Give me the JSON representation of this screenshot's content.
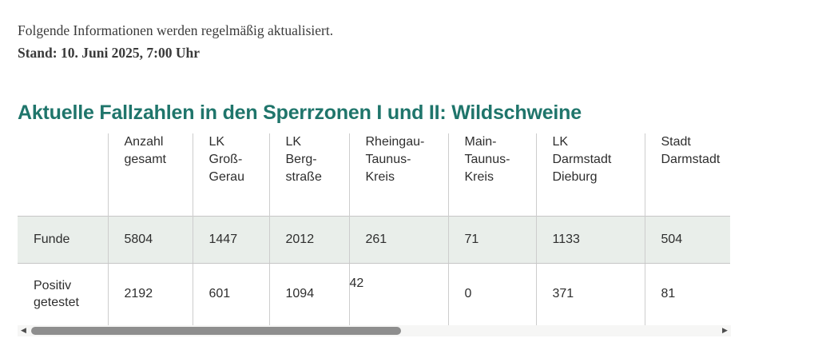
{
  "intro": {
    "updated_note": "Folgende Informationen werden regelmäßig aktualisiert.",
    "stand": "Stand: 10. Juni 2025, 7:00 Uhr"
  },
  "heading": "Aktuelle Fallzahlen in den Sperrzonen I und II: Wildschweine",
  "colors": {
    "accent_teal": "#1f756b",
    "highlight_row_bg": "#e9eeea",
    "body_text": "#3a3a3a"
  },
  "table": {
    "columns": [
      "Anzahl\ngesamt",
      "LK\nGroß-\nGerau",
      "LK\nBerg-\nstraße",
      "Rheingau-\nTaunus-\nKreis",
      "Main-\nTaunus-\nKreis",
      "LK\nDarmstadt\nDieburg",
      "Stadt\nDarmstadt"
    ],
    "rows": [
      {
        "label": "Funde",
        "values": [
          "5804",
          "1447",
          "2012",
          "261",
          "71",
          "1133",
          "504"
        ]
      },
      {
        "label": "Positiv\ngetestet",
        "values": [
          "2192",
          "601",
          "1094",
          "42",
          "0",
          "371",
          "81"
        ]
      }
    ]
  },
  "scrollbar": {
    "left_icon": "◀",
    "right_icon": "▶"
  }
}
